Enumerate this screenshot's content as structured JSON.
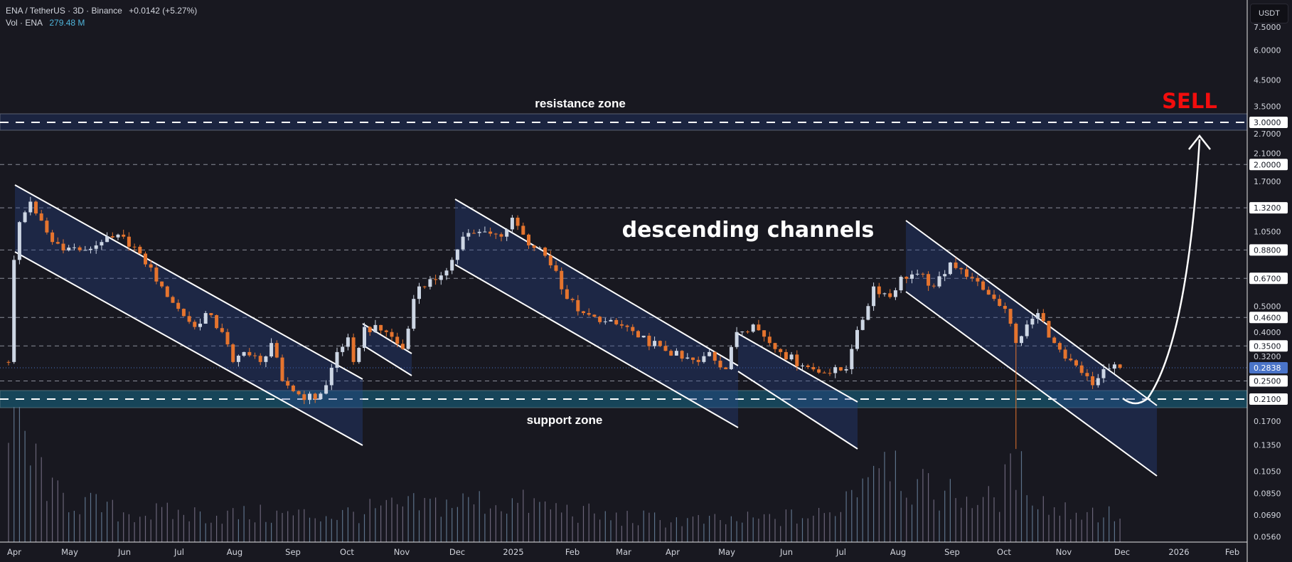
{
  "header": {
    "symbol": "ENA / TetherUS · 3D · Binance",
    "change": "+0.0142 (+5.27%)",
    "volume_label": "Vol · ENA",
    "volume_value": "279.48 M"
  },
  "currency_button": "USDT",
  "annotations": {
    "resistance": "resistance zone",
    "support": "support zone",
    "channels": "descending channels",
    "signal": "SELL"
  },
  "colors": {
    "up": "#cdd6e4",
    "down": "#e5742e",
    "signal": "#f20d0d",
    "volume_value": "#4fb3d9",
    "last_price": "#4a74c9"
  },
  "price_axis": {
    "ticks": [
      "7.5000",
      "6.0000",
      "4.5000",
      "3.5000",
      "2.7000",
      "2.1000",
      "1.7000",
      "1.0500",
      "0.5000",
      "0.4000",
      "0.3200",
      "0.1700",
      "0.1350",
      "0.1050",
      "0.0850",
      "0.0690",
      "0.0560"
    ],
    "line_labels": [
      "3.0000",
      "2.0000",
      "1.3200",
      "0.8800",
      "0.6700",
      "0.4600",
      "0.3500",
      "0.2500",
      "0.2100"
    ],
    "last_price": "0.2838"
  },
  "time_axis": [
    "Apr",
    "May",
    "Jun",
    "Jul",
    "Aug",
    "Sep",
    "Oct",
    "Nov",
    "Dec",
    "2025",
    "Feb",
    "Mar",
    "Apr",
    "May",
    "Jun",
    "Jul",
    "Aug",
    "Sep",
    "Oct",
    "Nov",
    "Dec",
    "2026",
    "Feb"
  ],
  "chart_data": {
    "type": "candlestick",
    "title": "ENA / TetherUS · 3D · Binance",
    "scale": "log",
    "ylim": [
      0.056,
      7.5
    ],
    "xrange": [
      "Apr 2024",
      "Feb 2026"
    ],
    "close_anchors": [
      [
        0,
        0.3
      ],
      [
        1,
        0.8
      ],
      [
        2,
        1.15
      ],
      [
        4,
        1.4
      ],
      [
        5,
        1.25
      ],
      [
        8,
        0.95
      ],
      [
        11,
        0.9
      ],
      [
        14,
        0.88
      ],
      [
        17,
        0.95
      ],
      [
        21,
        1.0
      ],
      [
        24,
        0.85
      ],
      [
        28,
        0.62
      ],
      [
        31,
        0.5
      ],
      [
        34,
        0.42
      ],
      [
        36,
        0.48
      ],
      [
        39,
        0.4
      ],
      [
        41,
        0.3
      ],
      [
        43,
        0.33
      ],
      [
        46,
        0.3
      ],
      [
        48,
        0.36
      ],
      [
        50,
        0.25
      ],
      [
        53,
        0.22
      ],
      [
        56,
        0.21
      ],
      [
        58,
        0.24
      ],
      [
        60,
        0.33
      ],
      [
        62,
        0.38
      ],
      [
        63,
        0.3
      ],
      [
        65,
        0.42
      ],
      [
        69,
        0.4
      ],
      [
        72,
        0.34
      ],
      [
        74,
        0.55
      ],
      [
        75,
        0.62
      ],
      [
        78,
        0.66
      ],
      [
        81,
        0.8
      ],
      [
        83,
        1.0
      ],
      [
        87,
        1.05
      ],
      [
        90,
        1.0
      ],
      [
        92,
        1.2
      ],
      [
        95,
        0.92
      ],
      [
        97,
        0.9
      ],
      [
        100,
        0.72
      ],
      [
        102,
        0.55
      ],
      [
        105,
        0.48
      ],
      [
        108,
        0.44
      ],
      [
        113,
        0.42
      ],
      [
        115,
        0.38
      ],
      [
        119,
        0.35
      ],
      [
        123,
        0.31
      ],
      [
        126,
        0.3
      ],
      [
        128,
        0.33
      ],
      [
        131,
        0.28
      ],
      [
        133,
        0.4
      ],
      [
        136,
        0.43
      ],
      [
        139,
        0.36
      ],
      [
        141,
        0.33
      ],
      [
        145,
        0.29
      ],
      [
        149,
        0.27
      ],
      [
        153,
        0.28
      ],
      [
        154,
        0.34
      ],
      [
        156,
        0.45
      ],
      [
        158,
        0.62
      ],
      [
        161,
        0.56
      ],
      [
        163,
        0.68
      ],
      [
        166,
        0.7
      ],
      [
        169,
        0.62
      ],
      [
        172,
        0.78
      ],
      [
        175,
        0.68
      ],
      [
        178,
        0.6
      ],
      [
        180,
        0.55
      ],
      [
        182,
        0.5
      ],
      [
        184,
        0.36
      ],
      [
        186,
        0.43
      ],
      [
        188,
        0.48
      ],
      [
        191,
        0.36
      ],
      [
        193,
        0.31
      ],
      [
        196,
        0.27
      ],
      [
        198,
        0.24
      ],
      [
        200,
        0.28
      ],
      [
        203,
        0.2838
      ]
    ],
    "special_lows": [
      [
        184,
        0.13
      ]
    ],
    "volume_anchors": [
      [
        0,
        0.7
      ],
      [
        2,
        1.0
      ],
      [
        4,
        0.6
      ],
      [
        6,
        0.55
      ],
      [
        8,
        0.35
      ],
      [
        20,
        0.22
      ],
      [
        40,
        0.2
      ],
      [
        60,
        0.2
      ],
      [
        70,
        0.25
      ],
      [
        85,
        0.3
      ],
      [
        95,
        0.28
      ],
      [
        110,
        0.18
      ],
      [
        130,
        0.15
      ],
      [
        150,
        0.2
      ],
      [
        155,
        0.45
      ],
      [
        160,
        0.75
      ],
      [
        165,
        0.4
      ],
      [
        180,
        0.3
      ],
      [
        184,
        0.55
      ],
      [
        190,
        0.25
      ],
      [
        203,
        0.2
      ]
    ],
    "horizontal_levels": [
      3.0,
      2.0,
      1.32,
      0.88,
      0.67,
      0.46,
      0.35,
      0.25,
      0.21
    ],
    "resistance_zone": [
      2.75,
      3.25
    ],
    "support_zone": [
      0.195,
      0.228
    ],
    "last_price": 0.2838
  }
}
